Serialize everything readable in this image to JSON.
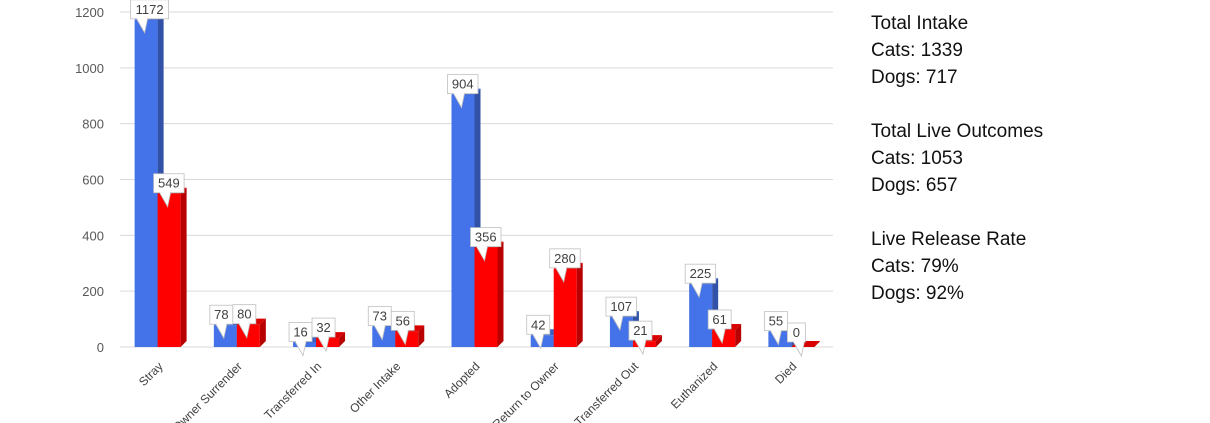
{
  "chart_data": {
    "type": "bar",
    "categories": [
      "Stray",
      "Owner Surrender",
      "Transferred In",
      "Other Intake",
      "Adopted",
      "Return to Owner",
      "Transferred Out",
      "Euthanized",
      "Died"
    ],
    "series": [
      {
        "color": "#4472e8",
        "values": [
          1172,
          78,
          16,
          73,
          904,
          42,
          107,
          225,
          55
        ]
      },
      {
        "color": "#ff0000",
        "values": [
          549,
          80,
          32,
          56,
          356,
          280,
          21,
          61,
          0
        ]
      }
    ],
    "ylim": [
      0,
      1200
    ],
    "yticks": [
      0,
      200,
      400,
      600,
      800,
      1000,
      1200
    ],
    "grid": true,
    "style": "3d-column"
  },
  "stats": [
    {
      "title": "Total Intake",
      "lines": [
        "Cats: 1339",
        "Dogs: 717"
      ]
    },
    {
      "title": "Total Live Outcomes",
      "lines": [
        "Cats: 1053",
        "Dogs: 657"
      ]
    },
    {
      "title": "Live Release Rate",
      "lines": [
        "Cats: 79%",
        "Dogs: 92%"
      ]
    }
  ]
}
